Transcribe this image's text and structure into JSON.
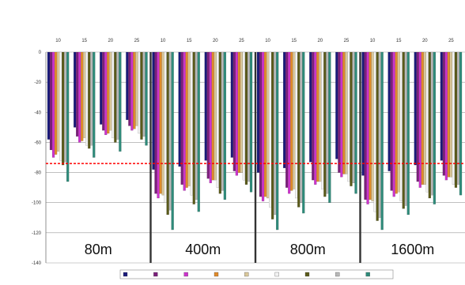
{
  "chart_data": {
    "type": "bar",
    "title": "",
    "xlabel": "",
    "ylabel": "",
    "ylim": [
      -140,
      0
    ],
    "yticks": [
      0,
      -20,
      -40,
      -60,
      -80,
      -100,
      -120,
      -140
    ],
    "grid": true,
    "groups": [
      {
        "label": "80m",
        "subcats": [
          "10",
          "15",
          "20",
          "25"
        ]
      },
      {
        "label": "400m",
        "subcats": [
          "10",
          "15",
          "20",
          "25"
        ]
      },
      {
        "label": "800m",
        "subcats": [
          "10",
          "15",
          "20",
          "25"
        ]
      },
      {
        "label": "1600m",
        "subcats": [
          "10",
          "15",
          "20",
          "25"
        ]
      }
    ],
    "reference_line": {
      "value": -74,
      "color": "#ff0000"
    },
    "series": [
      {
        "name": "",
        "color": "#1a1a7a"
      },
      {
        "name": "",
        "color": "#7a1f7a"
      },
      {
        "name": "",
        "color": "#cc33cc"
      },
      {
        "name": "",
        "color": "#e08a2a"
      },
      {
        "name": "",
        "color": "#d9c79a"
      },
      {
        "name": "",
        "color": "#f2f2f2"
      },
      {
        "name": "",
        "color": "#5a5a1a"
      },
      {
        "name": "",
        "color": "#b8b8b8"
      },
      {
        "name": "",
        "color": "#2e8b7a"
      }
    ],
    "values": [
      [
        [
          -58,
          -65,
          -70,
          -68,
          -66,
          -72,
          -75,
          -73,
          -86
        ],
        [
          -50,
          -56,
          -60,
          -59,
          -57,
          -62,
          -64,
          -62,
          -70
        ],
        [
          -48,
          -52,
          -55,
          -54,
          -52,
          -57,
          -60,
          -58,
          -66
        ],
        [
          -45,
          -49,
          -52,
          -51,
          -49,
          -54,
          -58,
          -56,
          -62
        ]
      ],
      [
        [
          -78,
          -94,
          -97,
          -94,
          -95,
          -100,
          -108,
          -105,
          -118
        ],
        [
          -76,
          -88,
          -92,
          -90,
          -89,
          -95,
          -101,
          -98,
          -106
        ],
        [
          -72,
          -84,
          -87,
          -85,
          -85,
          -90,
          -94,
          -92,
          -98
        ],
        [
          -70,
          -79,
          -82,
          -80,
          -80,
          -85,
          -88,
          -86,
          -93
        ]
      ],
      [
        [
          -80,
          -96,
          -99,
          -96,
          -97,
          -103,
          -111,
          -108,
          -118
        ],
        [
          -77,
          -90,
          -94,
          -92,
          -91,
          -97,
          -103,
          -100,
          -107
        ],
        [
          -73,
          -85,
          -88,
          -86,
          -86,
          -91,
          -96,
          -94,
          -100
        ],
        [
          -71,
          -80,
          -83,
          -81,
          -81,
          -86,
          -89,
          -87,
          -94
        ]
      ],
      [
        [
          -82,
          -98,
          -101,
          -98,
          -99,
          -106,
          -112,
          -110,
          -118
        ],
        [
          -79,
          -92,
          -96,
          -94,
          -93,
          -99,
          -104,
          -102,
          -108
        ],
        [
          -75,
          -86,
          -90,
          -88,
          -88,
          -93,
          -97,
          -95,
          -101
        ],
        [
          -72,
          -82,
          -85,
          -83,
          -83,
          -88,
          -90,
          -88,
          -95
        ]
      ]
    ]
  }
}
